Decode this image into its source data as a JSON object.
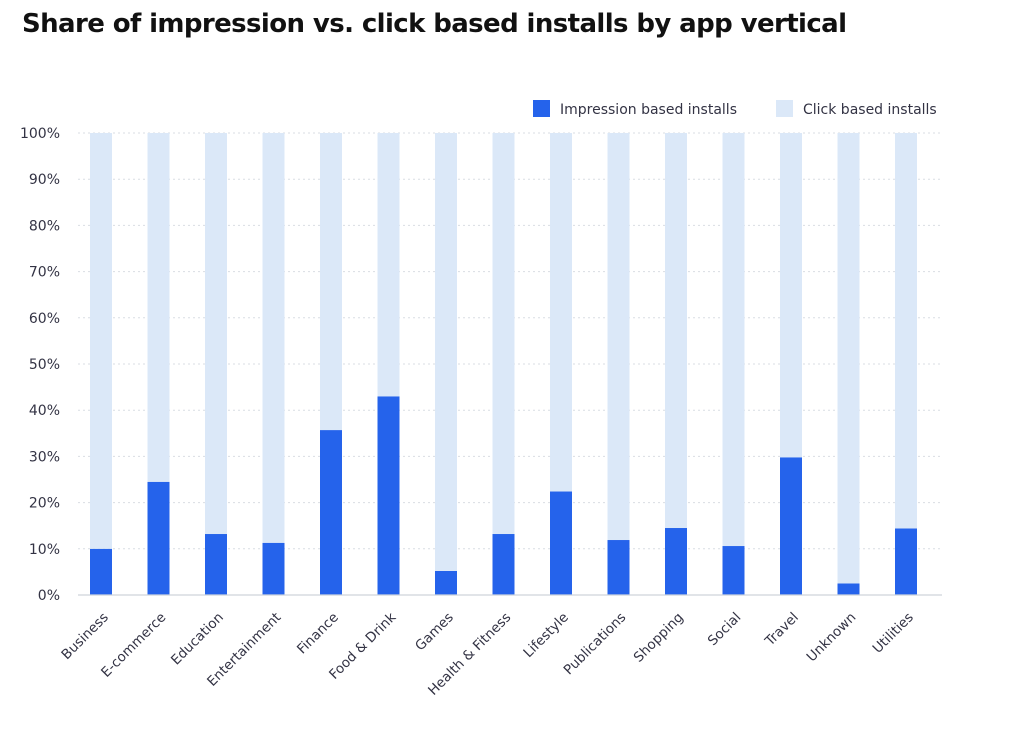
{
  "chart_data": {
    "type": "bar",
    "stacked": true,
    "title": "Share of impression vs. click based installs by app vertical",
    "categories": [
      "Business",
      "E-commerce",
      "Education",
      "Entertainment",
      "Finance",
      "Food & Drink",
      "Games",
      "Health & Fitness",
      "Lifestyle",
      "Publications",
      "Shopping",
      "Social",
      "Travel",
      "Unknown",
      "Utilities"
    ],
    "series": [
      {
        "name": "Impression based installs",
        "color": "#2563eb",
        "values": [
          10,
          24.5,
          13.2,
          11.3,
          35.7,
          43,
          5.2,
          13.2,
          22.4,
          11.9,
          14.5,
          10.6,
          29.8,
          2.5,
          14.4
        ]
      },
      {
        "name": "Click based installs",
        "color": "#dbe8f8",
        "values": [
          90,
          75.5,
          86.8,
          88.7,
          64.3,
          57,
          94.8,
          86.8,
          77.6,
          88.1,
          85.5,
          89.4,
          70.2,
          97.5,
          85.6
        ]
      }
    ],
    "yticks": [
      "0%",
      "10%",
      "20%",
      "30%",
      "40%",
      "50%",
      "60%",
      "70%",
      "80%",
      "90%",
      "100%"
    ],
    "ylim": [
      0,
      100
    ],
    "grid": "dotted horizontal",
    "legend_position": "top-right",
    "xlabel": "",
    "ylabel": ""
  }
}
